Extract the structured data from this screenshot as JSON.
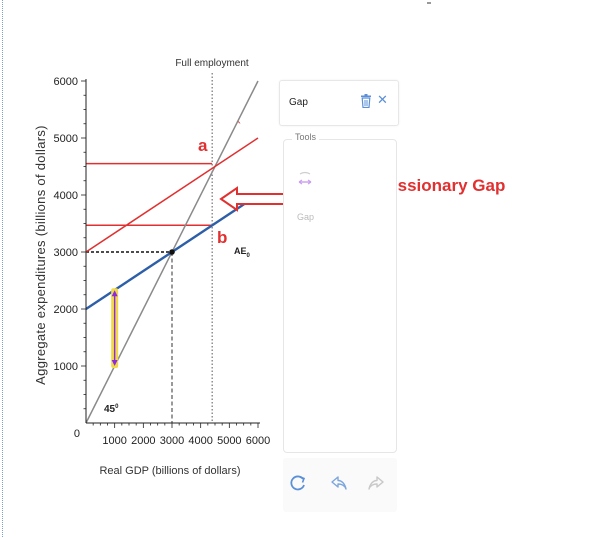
{
  "chart_data": {
    "type": "line",
    "xlabel": "Real GDP (billions of dollars)",
    "ylabel": "Aggregate expenditures (billions of dollars)",
    "xlim": [
      0,
      6000
    ],
    "ylim": [
      0,
      6000
    ],
    "x_ticks": [
      "0",
      "1000",
      "2000",
      "3000",
      "4000",
      "5000",
      "6000"
    ],
    "y_ticks": [
      "1000",
      "2000",
      "3000",
      "4000",
      "5000",
      "6000"
    ],
    "full_employment_label": "Full employment",
    "full_employment_x": 4400,
    "equilibrium": {
      "x": 3000,
      "y": 3000
    },
    "series": [
      {
        "name": "45°",
        "color": "#8a8a8a",
        "points": [
          [
            0,
            0
          ],
          [
            6000,
            6000
          ]
        ]
      },
      {
        "name": "AE0",
        "color": "#2d5ea8",
        "points": [
          [
            0,
            2000
          ],
          [
            6000,
            4000
          ]
        ]
      },
      {
        "name": "",
        "color": "#e03030",
        "points": [
          [
            0,
            3000
          ],
          [
            6000,
            5000
          ]
        ]
      }
    ],
    "horizontal_lines": [
      {
        "y": 4550,
        "x0": 0,
        "x1": 4400,
        "color": "#e03030"
      },
      {
        "y": 3470,
        "x0": 0,
        "x1": 4400,
        "color": "#e03030"
      }
    ],
    "points": [
      {
        "label": "a",
        "x": 4400,
        "y": 4550
      },
      {
        "label": "b",
        "x": 4400,
        "y": 3470
      }
    ],
    "vertical_arrow": {
      "x": 1000,
      "y0": 1000,
      "y1": 2330
    },
    "annotations": {
      "curve_label_main": "AE",
      "curve_label_sub": "0",
      "diag_label_main": "45",
      "diag_label_sup": "0",
      "apostrophe": "`",
      "recessionary_gap": "Recessionary Gap"
    }
  },
  "panel": {
    "title": "Gap",
    "close_glyph": "✕",
    "tools_label": "Tools",
    "gap_tool_label": "Gap"
  },
  "colors": {
    "red": "#e03030",
    "blue": "#2d5ea8",
    "grey": "#8a8a8a",
    "arrow_fill": "#f2d94a",
    "arrow_line": "#8a2be2",
    "icon_blue": "#5b8fd6"
  },
  "icons": [
    "trash-icon",
    "close-icon",
    "gap-tool-icon",
    "reset-icon",
    "undo-icon",
    "redo-icon"
  ]
}
